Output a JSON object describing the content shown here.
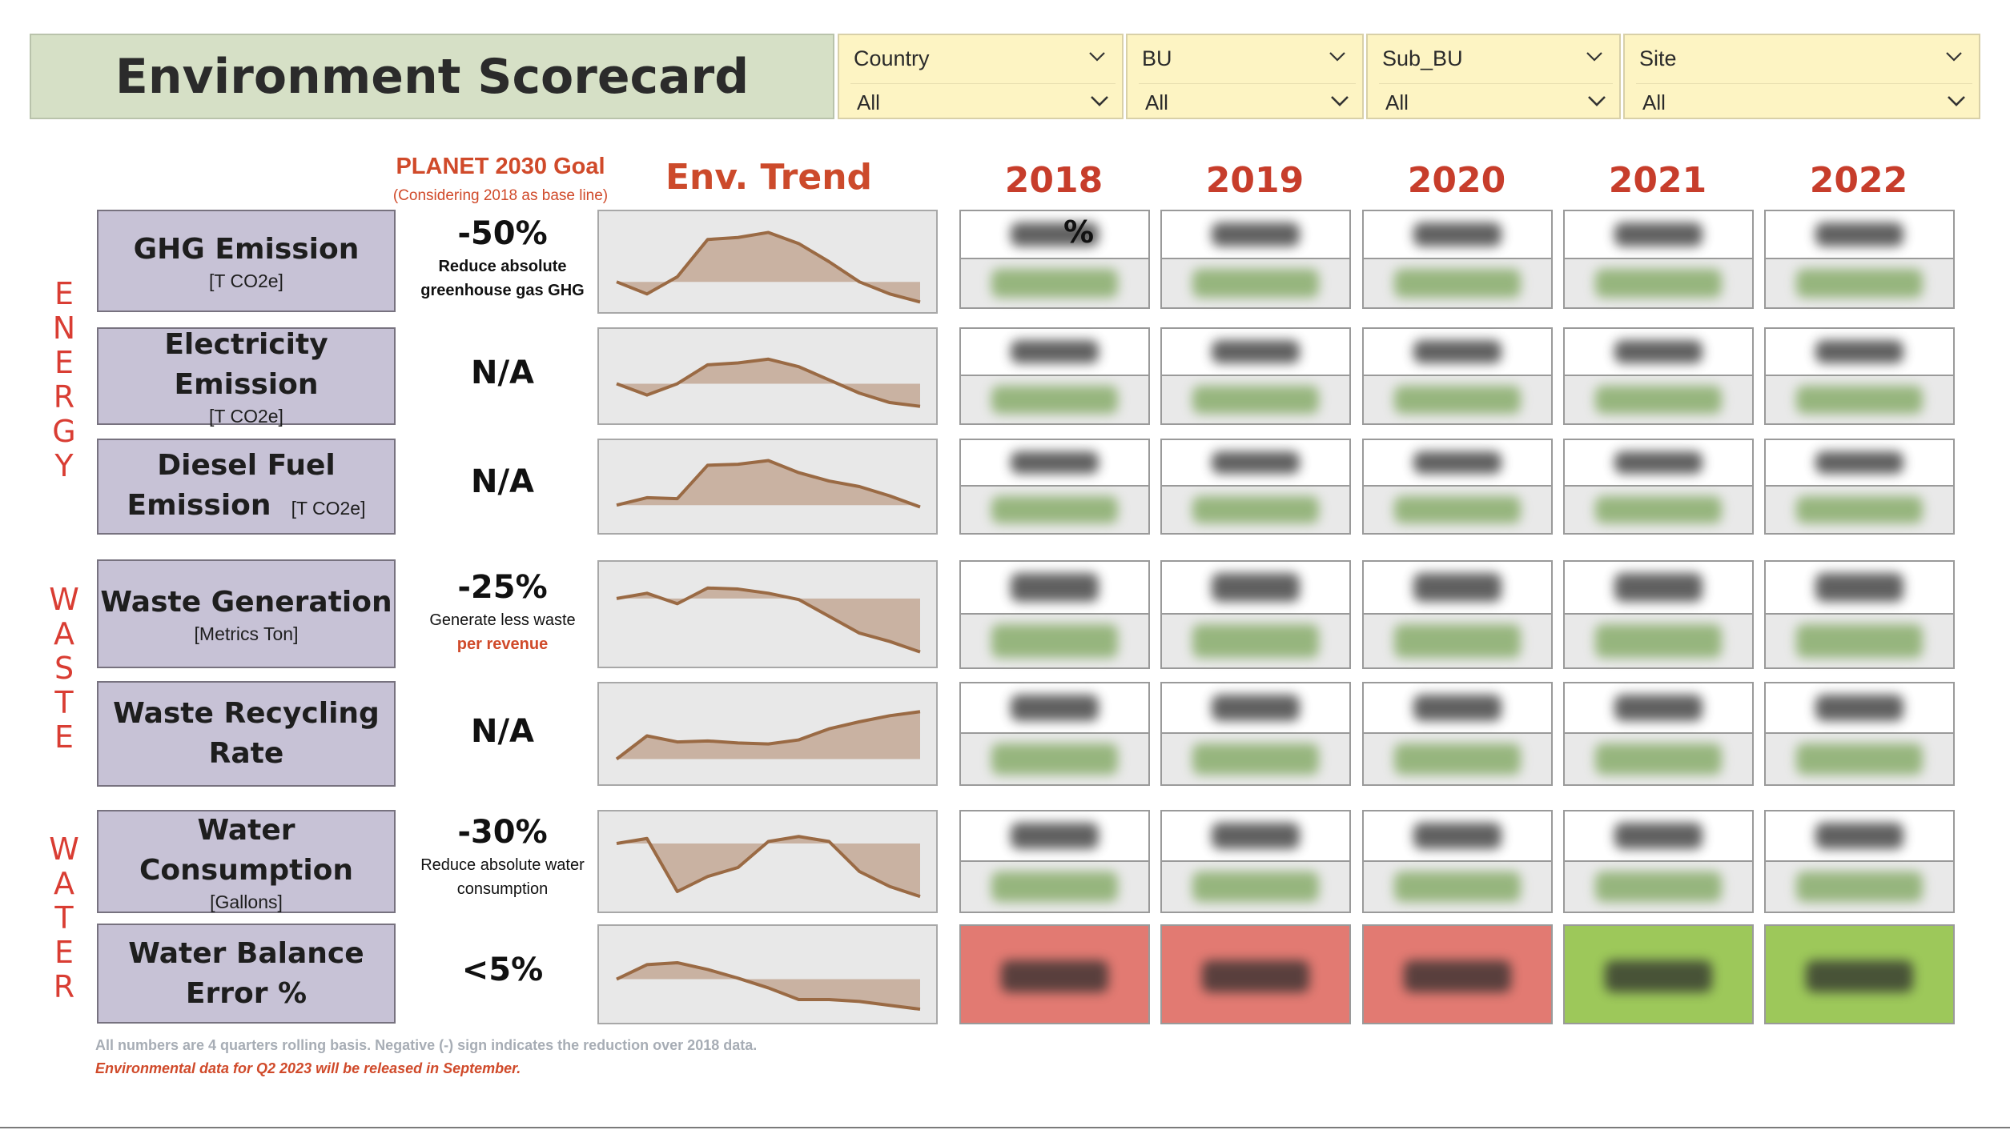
{
  "header": {
    "title": "Environment Scorecard",
    "filters": [
      {
        "label": "Country",
        "value": "All"
      },
      {
        "label": "BU",
        "value": "All"
      },
      {
        "label": "Sub_BU",
        "value": "All"
      },
      {
        "label": "Site",
        "value": "All"
      }
    ]
  },
  "columns": {
    "goal_title": "PLANET 2030 Goal",
    "goal_subtitle": "(Considering 2018 as base line)",
    "trend_title": "Env. Trend",
    "years": [
      "2018",
      "2019",
      "2020",
      "2021",
      "2022"
    ]
  },
  "categories": {
    "energy": [
      "E",
      "N",
      "E",
      "R",
      "G",
      "Y"
    ],
    "waste": [
      "W",
      "A",
      "S",
      "T",
      "E"
    ],
    "water": [
      "W",
      "A",
      "T",
      "E",
      "R"
    ]
  },
  "metrics": [
    {
      "name": "GHG Emission",
      "unit": "[T CO2e]",
      "goal": "-50%",
      "goal_desc": [
        "Reduce absolute",
        "greenhouse gas GHG"
      ],
      "first_cell_text": "%"
    },
    {
      "name": "Electricity Emission",
      "unit": "[T CO2e]",
      "goal": "N/A"
    },
    {
      "name_lines": [
        "Diesel Fuel",
        "Emission"
      ],
      "unit": "[T CO2e]",
      "goal": "N/A"
    },
    {
      "name": "Waste Generation",
      "unit": "[Metrics Ton]",
      "goal": "-25%",
      "goal_desc": [
        "Generate less waste"
      ],
      "goal_desc_red": "per revenue"
    },
    {
      "name_lines": [
        "Waste Recycling",
        "Rate"
      ],
      "goal": "N/A"
    },
    {
      "name": "Water Consumption",
      "unit": "[Gallons]",
      "goal": "-30%",
      "goal_desc": [
        "Reduce absolute water",
        "consumption"
      ]
    },
    {
      "name_lines": [
        "Water Balance",
        "Error %"
      ],
      "goal": "<5%",
      "status": [
        "red",
        "red",
        "red",
        "green",
        "green"
      ]
    }
  ],
  "trend_series": {
    "ghg": [
      0.3,
      0.18,
      0.35,
      0.72,
      0.74,
      0.79,
      0.68,
      0.5,
      0.3,
      0.18,
      0.1
    ],
    "electricity": [
      0.42,
      0.3,
      0.42,
      0.62,
      0.64,
      0.68,
      0.6,
      0.46,
      0.32,
      0.22,
      0.18
    ],
    "diesel": [
      0.3,
      0.38,
      0.37,
      0.73,
      0.74,
      0.78,
      0.65,
      0.56,
      0.5,
      0.4,
      0.28
    ],
    "waste_generation": [
      0.65,
      0.7,
      0.6,
      0.75,
      0.74,
      0.7,
      0.64,
      0.48,
      0.32,
      0.24,
      0.14
    ],
    "waste_recycling": [
      0.25,
      0.48,
      0.42,
      0.43,
      0.41,
      0.4,
      0.44,
      0.55,
      0.62,
      0.68,
      0.72
    ],
    "water_consumption": [
      0.68,
      0.73,
      0.2,
      0.35,
      0.44,
      0.7,
      0.75,
      0.7,
      0.4,
      0.25,
      0.15
    ],
    "water_balance": [
      0.45,
      0.6,
      0.62,
      0.55,
      0.46,
      0.36,
      0.24,
      0.24,
      0.22,
      0.18,
      0.14
    ]
  },
  "footer": {
    "note": "All numbers are 4 quarters rolling basis. Negative (-) sign indicates the reduction over 2018 data.",
    "release": "Environmental data for Q2 2023 will be released in September."
  },
  "colors": {
    "trend_line": "#9a6a44",
    "trend_fill": "#c9b2a2",
    "red_status": "#e27a72",
    "green_status": "#9dc85a"
  }
}
